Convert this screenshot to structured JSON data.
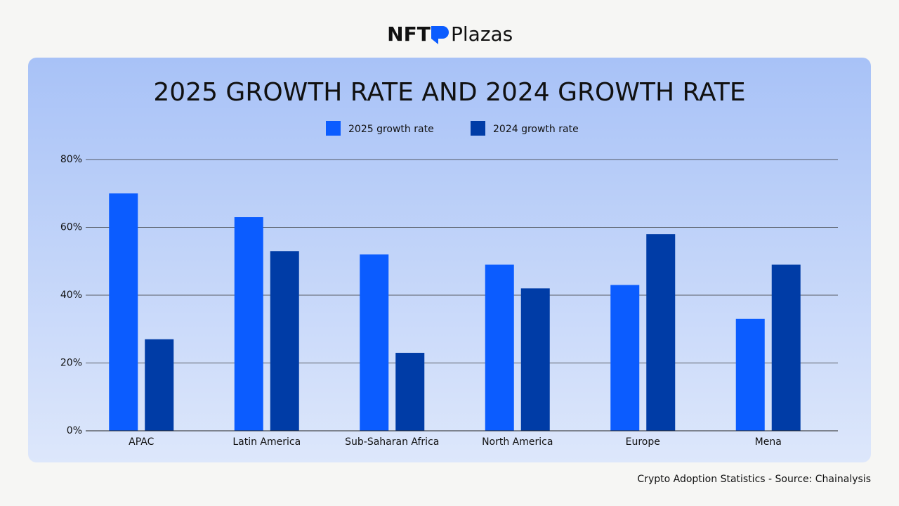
{
  "logo": {
    "left": "NFT",
    "right": "Plazas"
  },
  "chart_data": {
    "type": "bar",
    "title": "2025 GROWTH RATE AND 2024 GROWTH RATE",
    "categories": [
      "APAC",
      "Latin America",
      "Sub-Saharan Africa",
      "North America",
      "Europe",
      "Mena"
    ],
    "series": [
      {
        "name": "2025 growth rate",
        "color": "#0b5cff",
        "values": [
          70,
          63,
          52,
          49,
          43,
          33
        ]
      },
      {
        "name": "2024 growth rate",
        "color": "#003ca6",
        "values": [
          27,
          53,
          23,
          42,
          58,
          49
        ]
      }
    ],
    "ylim": [
      0,
      80
    ],
    "yticks": [
      {
        "value": 0,
        "label": "0%"
      },
      {
        "value": 20,
        "label": "20%"
      },
      {
        "value": 40,
        "label": "40%"
      },
      {
        "value": 60,
        "label": "60%"
      },
      {
        "value": 80,
        "label": "80%"
      }
    ],
    "grid": true,
    "legend": "top",
    "caption": "Crypto Adoption Statistics - Source: Chainalysis"
  }
}
